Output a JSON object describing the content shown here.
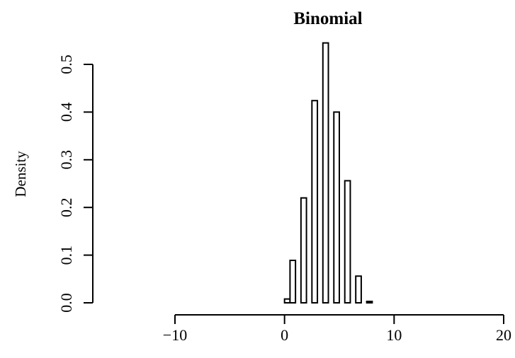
{
  "chart_data": {
    "type": "bar",
    "title": "Binomial",
    "xlabel": "",
    "ylabel": "Density",
    "xlim": [
      -10,
      20
    ],
    "ylim": [
      0,
      0.5
    ],
    "x_ticks": [
      -10,
      0,
      10,
      20
    ],
    "x_tick_labels": [
      "−10",
      "0",
      "10",
      "20"
    ],
    "y_ticks": [
      0.0,
      0.1,
      0.2,
      0.3,
      0.4,
      0.5
    ],
    "y_tick_labels": [
      "0.0",
      "0.1",
      "0.2",
      "0.3",
      "0.4",
      "0.5"
    ],
    "grid": false,
    "bins": [
      {
        "x0": 0.0,
        "x1": 0.5,
        "density": 0.008
      },
      {
        "x0": 0.5,
        "x1": 1.0,
        "density": 0.089
      },
      {
        "x0": 1.0,
        "x1": 1.5,
        "density": 0.0
      },
      {
        "x0": 1.5,
        "x1": 2.0,
        "density": 0.22
      },
      {
        "x0": 2.0,
        "x1": 2.5,
        "density": 0.0
      },
      {
        "x0": 2.5,
        "x1": 3.0,
        "density": 0.424
      },
      {
        "x0": 3.0,
        "x1": 3.5,
        "density": 0.0
      },
      {
        "x0": 3.5,
        "x1": 4.0,
        "density": 0.545
      },
      {
        "x0": 4.0,
        "x1": 4.5,
        "density": 0.0
      },
      {
        "x0": 4.5,
        "x1": 5.0,
        "density": 0.4
      },
      {
        "x0": 5.0,
        "x1": 5.5,
        "density": 0.0
      },
      {
        "x0": 5.5,
        "x1": 6.0,
        "density": 0.256
      },
      {
        "x0": 6.0,
        "x1": 6.5,
        "density": 0.0
      },
      {
        "x0": 6.5,
        "x1": 7.0,
        "density": 0.056
      },
      {
        "x0": 7.0,
        "x1": 7.5,
        "density": 0.0
      },
      {
        "x0": 7.5,
        "x1": 8.0,
        "density": 0.003
      }
    ]
  }
}
